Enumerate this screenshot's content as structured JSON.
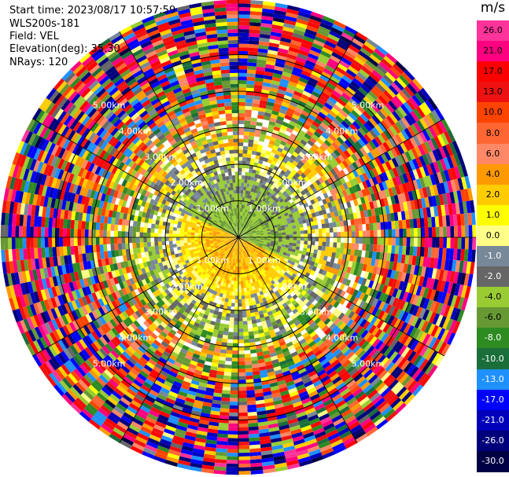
{
  "header": {
    "start_time": "Start time: 2023/08/17 10:57:59",
    "instrument": "WLS200s-181",
    "field": "Field: VEL",
    "elevation": "Elevation(deg): 35.30",
    "nrays": "NRays: 120"
  },
  "colorbar": {
    "unit": "m/s",
    "ticks": [
      "26.0",
      "21.0",
      "17.0",
      "13.0",
      "10.0",
      "8.0",
      "6.0",
      "4.0",
      "2.0",
      "1.0",
      "0.0",
      "-1.0",
      "-2.0",
      "-4.0",
      "-6.0",
      "-8.0",
      "-10.0",
      "-13.0",
      "-17.0",
      "-21.0",
      "-26.0",
      "-30.0"
    ],
    "colors": [
      "#ff3399",
      "#ff0080",
      "#ff0000",
      "#ee1111",
      "#ff4400",
      "#ff6633",
      "#ff8866",
      "#ff9900",
      "#ffcc00",
      "#ffff00",
      "#ffff88",
      "#778899",
      "#666666",
      "#99cc33",
      "#669933",
      "#2e8b22",
      "#1a6e3a",
      "#1e90ff",
      "#0000ff",
      "#0000bb",
      "#00007a",
      "#000044"
    ]
  },
  "chart_data": {
    "type": "ppi",
    "field": "VEL",
    "unit": "m/s",
    "nrays": 120,
    "elevation_deg": 35.3,
    "range_rings_km": [
      1.0,
      2.0,
      3.0,
      4.0,
      5.0
    ],
    "ring_labels": [
      "1.00km",
      "2.00km",
      "3.00km",
      "4.00km",
      "5.00km"
    ],
    "spoke_angles_deg": [
      0,
      30,
      60,
      90,
      120,
      150,
      180,
      210,
      240,
      270,
      300,
      330
    ],
    "max_range_km": 6.5,
    "velocity_profile": [
      {
        "range_km": 0.5,
        "mean_ms": -4.0,
        "spread_ms": 1.5
      },
      {
        "range_km": 1.5,
        "mean_ms": -2.0,
        "spread_ms": 2.0
      },
      {
        "range_km": 2.5,
        "mean_ms": 1.5,
        "spread_ms": 3.0
      },
      {
        "range_km": 3.5,
        "mean_ms": 2.0,
        "spread_ms": 12.0
      },
      {
        "range_km": 4.5,
        "mean_ms": 0.0,
        "spread_ms": 22.0
      },
      {
        "range_km": 6.0,
        "mean_ms": 0.0,
        "spread_ms": 28.0
      }
    ]
  }
}
